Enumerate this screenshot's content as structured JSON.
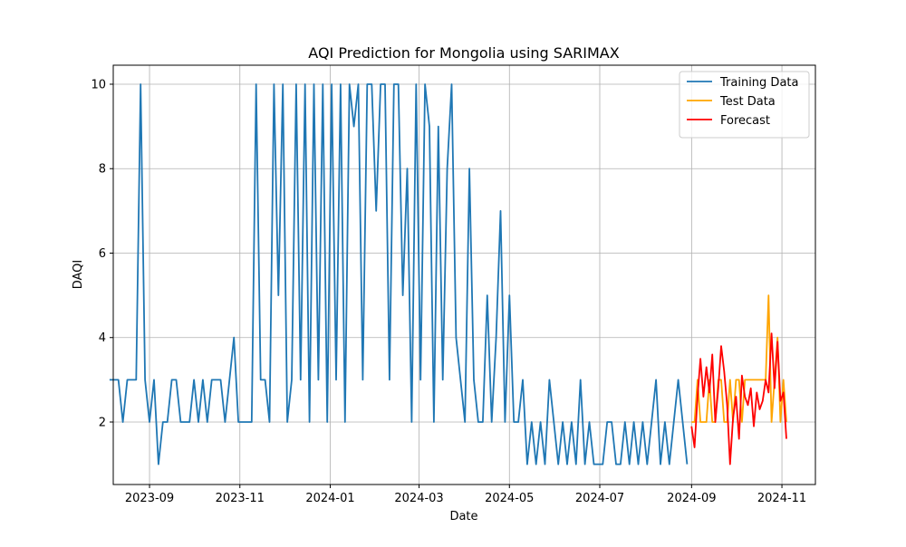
{
  "chart_data": {
    "type": "line",
    "title": "AQI Prediction for Mongolia using SARIMAX",
    "x_label": "Date",
    "y_label": "DAQI",
    "xlim": [
      19576.5,
      20050.6
    ],
    "ylim": [
      0.52,
      10.45
    ],
    "xticks": [
      {
        "value": 19601,
        "label": "2023-09"
      },
      {
        "value": 19662,
        "label": "2023-11"
      },
      {
        "value": 19723,
        "label": "2024-01"
      },
      {
        "value": 19783,
        "label": "2024-03"
      },
      {
        "value": 19844,
        "label": "2024-05"
      },
      {
        "value": 19905,
        "label": "2024-07"
      },
      {
        "value": 19967,
        "label": "2024-09"
      },
      {
        "value": 20028,
        "label": "2024-11"
      }
    ],
    "yticks": [
      2,
      4,
      6,
      8,
      10
    ],
    "grid": true,
    "legend": "upper right",
    "series": [
      {
        "name": "Training Data",
        "color": "#1f77b4",
        "x": [
          19574,
          19577,
          19580,
          19583,
          19586,
          19589,
          19592,
          19595,
          19598,
          19601,
          19604,
          19607,
          19610,
          19613,
          19616,
          19619,
          19622,
          19625,
          19628,
          19631,
          19634,
          19637,
          19640,
          19643,
          19646,
          19649,
          19652,
          19655,
          19658,
          19661,
          19664,
          19667,
          19670,
          19673,
          19676,
          19679,
          19682,
          19685,
          19688,
          19691,
          19694,
          19697,
          19700,
          19703,
          19706,
          19709,
          19712,
          19715,
          19718,
          19721,
          19724,
          19727,
          19730,
          19733,
          19736,
          19739,
          19742,
          19745,
          19748,
          19751,
          19754,
          19757,
          19760,
          19763,
          19766,
          19769,
          19772,
          19775,
          19778,
          19781,
          19784,
          19787,
          19790,
          19793,
          19796,
          19799,
          19802,
          19805,
          19808,
          19811,
          19814,
          19817,
          19820,
          19823,
          19826,
          19829,
          19832,
          19835,
          19838,
          19841,
          19844,
          19847,
          19850,
          19853,
          19856,
          19859,
          19862,
          19865,
          19868,
          19871,
          19874,
          19877,
          19880,
          19883,
          19886,
          19889,
          19892,
          19895,
          19898,
          19901,
          19904,
          19907,
          19910,
          19913,
          19916,
          19919,
          19922,
          19925,
          19928,
          19931,
          19934,
          19937,
          19940,
          19943,
          19946,
          19949,
          19952,
          19955,
          19958,
          19961,
          19964
        ],
        "values": [
          3,
          3,
          3,
          2,
          3,
          3,
          3,
          10,
          3,
          2,
          3,
          1,
          2,
          2,
          3,
          3,
          2,
          2,
          2,
          3,
          2,
          3,
          2,
          3,
          3,
          3,
          2,
          3,
          4,
          2,
          2,
          2,
          2,
          10,
          3,
          3,
          2,
          10,
          5,
          10,
          2,
          3,
          10,
          3,
          10,
          2,
          10,
          3,
          10,
          2,
          10,
          3,
          10,
          2,
          10,
          9,
          10,
          3,
          10,
          10,
          7,
          10,
          10,
          3,
          10,
          10,
          5,
          8,
          2,
          10,
          3,
          10,
          9,
          2,
          9,
          3,
          8,
          10,
          4,
          3,
          2,
          8,
          3,
          2,
          2,
          5,
          2,
          4,
          7,
          2,
          5,
          2,
          2,
          3,
          1,
          2,
          1,
          2,
          1,
          3,
          2,
          1,
          2,
          1,
          2,
          1,
          3,
          1,
          2,
          1,
          1,
          1,
          2,
          2,
          1,
          1,
          2,
          1,
          2,
          1,
          2,
          1,
          2,
          3,
          1,
          2,
          1,
          2,
          3,
          2,
          1
        ]
      },
      {
        "name": "Test Data",
        "color": "#ffa500",
        "x": [
          19967,
          19969,
          19971,
          19973,
          19975,
          19977,
          19979,
          19981,
          19983,
          19985,
          19987,
          19989,
          19991,
          19993,
          19995,
          19997,
          19999,
          20001,
          20003,
          20005,
          20007,
          20009,
          20011,
          20013,
          20015,
          20017,
          20019,
          20021,
          20023,
          20025,
          20027,
          20029,
          20031
        ],
        "values": [
          2,
          2,
          3,
          2,
          2,
          2,
          3,
          2,
          2,
          3,
          3,
          2,
          2,
          3,
          2,
          3,
          3,
          2,
          3,
          3,
          3,
          3,
          3,
          3,
          3,
          3,
          5,
          2,
          3,
          4,
          2,
          3,
          2
        ]
      },
      {
        "name": "Forecast",
        "color": "#ff0000",
        "x": [
          19967,
          19969,
          19971,
          19973,
          19975,
          19977,
          19979,
          19981,
          19983,
          19985,
          19987,
          19989,
          19991,
          19993,
          19995,
          19997,
          19999,
          20001,
          20003,
          20005,
          20007,
          20009,
          20011,
          20013,
          20015,
          20017,
          20019,
          20021,
          20023,
          20025,
          20027,
          20029,
          20031
        ],
        "values": [
          1.9,
          1.4,
          2.6,
          3.5,
          2.6,
          3.3,
          2.7,
          3.6,
          2.0,
          2.8,
          3.8,
          3.2,
          2.4,
          1.0,
          2.1,
          2.6,
          1.6,
          3.1,
          2.6,
          2.4,
          2.8,
          1.9,
          2.7,
          2.3,
          2.5,
          3.0,
          2.7,
          4.1,
          2.8,
          3.9,
          2.5,
          2.7,
          1.6
        ]
      }
    ]
  }
}
